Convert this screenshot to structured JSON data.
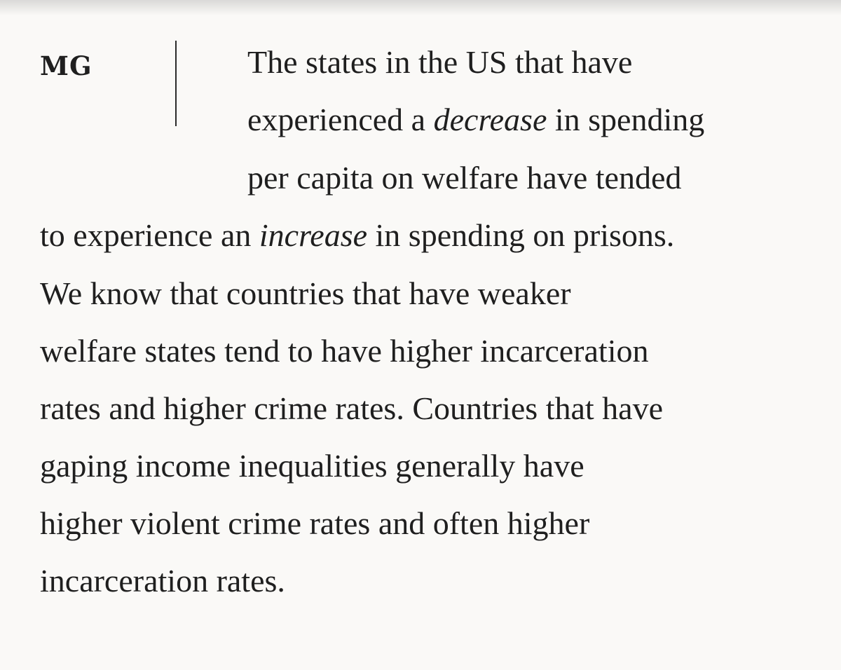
{
  "speaker": "MG",
  "lines": [
    {
      "pre": "The states in the US that have"
    },
    {
      "pre": "experienced a ",
      "em": "decrease",
      "post": " in spending"
    },
    {
      "pre": "per capita on welfare have tended"
    },
    {
      "pre": "to experience an ",
      "em": "increase",
      "post": " in spending on prisons."
    },
    {
      "pre": "We know that countries that have weaker"
    },
    {
      "pre": "welfare states tend to have higher incarceration"
    },
    {
      "pre": "rates and higher crime rates. Countries that have"
    },
    {
      "pre": "gaping income inequalities generally have"
    },
    {
      "pre": "higher violent crime rates and often higher"
    },
    {
      "pre": "incarceration rates."
    }
  ]
}
